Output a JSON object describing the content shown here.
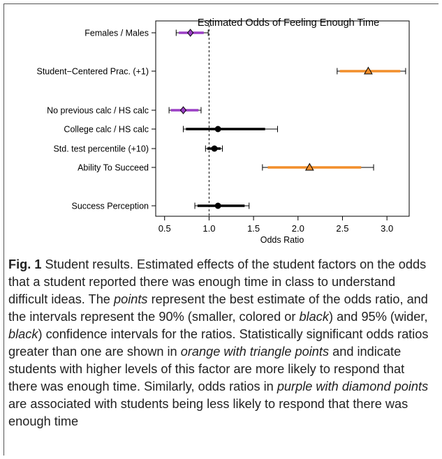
{
  "chart_data": {
    "type": "forest",
    "title": "Estimated Odds of Feeling Enough Time",
    "xlabel": "Odds Ratio",
    "xlim": [
      0.4,
      3.25
    ],
    "xticks": [
      0.5,
      1.0,
      1.5,
      2.0,
      2.5,
      3.0
    ],
    "xtick_labels": [
      "0.5",
      "1.0",
      "1.5",
      "2.0",
      "2.5",
      "3.0"
    ],
    "reference_line": 1.0,
    "colors": {
      "orange": "#f28e2b",
      "purple": "#9b3fc5",
      "black": "#000000"
    },
    "rows": [
      {
        "label": "Females / Males",
        "estimate": 0.79,
        "ci90": [
          0.66,
          0.94
        ],
        "ci95": [
          0.63,
          0.99
        ],
        "color": "purple",
        "marker": "diamond"
      },
      {
        "label": "Student−Centered Prac. (+1)",
        "estimate": 2.79,
        "ci90": [
          2.47,
          3.15
        ],
        "ci95": [
          2.44,
          3.21
        ],
        "color": "orange",
        "marker": "triangle"
      },
      {
        "label": "No previous calc / HS calc",
        "estimate": 0.71,
        "ci90": [
          0.57,
          0.88
        ],
        "ci95": [
          0.55,
          0.91
        ],
        "color": "purple",
        "marker": "diamond"
      },
      {
        "label": "College calc / HS calc",
        "estimate": 1.1,
        "ci90": [
          0.74,
          1.63
        ],
        "ci95": [
          0.71,
          1.77
        ],
        "color": "black",
        "marker": "circle"
      },
      {
        "label": "Std. test percentile (+10)",
        "estimate": 1.06,
        "ci90": [
          0.98,
          1.13
        ],
        "ci95": [
          0.96,
          1.15
        ],
        "color": "black",
        "marker": "circle"
      },
      {
        "label": "Ability To Succeed",
        "estimate": 2.13,
        "ci90": [
          1.66,
          2.71
        ],
        "ci95": [
          1.6,
          2.85
        ],
        "color": "orange",
        "marker": "triangle"
      },
      {
        "label": "Success Perception",
        "estimate": 1.1,
        "ci90": [
          0.87,
          1.4
        ],
        "ci95": [
          0.84,
          1.45
        ],
        "color": "black",
        "marker": "circle"
      }
    ]
  },
  "caption": {
    "fig_label": "Fig. 1",
    "segments": [
      {
        "text": " Student results. Estimated effects of the student factors on the odds that a student reported there was enough time in class to understand difficult ideas. The ",
        "italic": false
      },
      {
        "text": "points",
        "italic": true
      },
      {
        "text": " represent the best estimate of the odds ratio, and the intervals represent the 90% (smaller, colored or ",
        "italic": false
      },
      {
        "text": "black",
        "italic": true
      },
      {
        "text": ") and 95% (wider, ",
        "italic": false
      },
      {
        "text": "black",
        "italic": true
      },
      {
        "text": ") confidence intervals for the ratios. Statistically significant odds ratios greater than one are shown in ",
        "italic": false
      },
      {
        "text": "orange with triangle points",
        "italic": true
      },
      {
        "text": " and indicate students with higher levels of this factor are more likely to respond that there was enough time. Similarly, odds ratios in ",
        "italic": false
      },
      {
        "text": "purple with diamond points",
        "italic": true
      },
      {
        "text": " are associated with students being less likely to respond that there was enough time",
        "italic": false
      }
    ]
  }
}
